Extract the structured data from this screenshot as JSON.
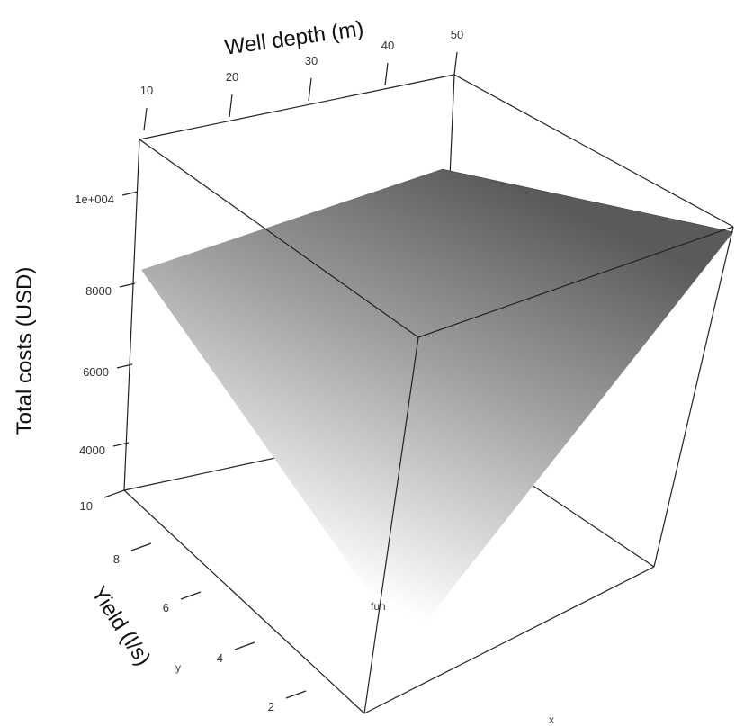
{
  "chart_data": {
    "type": "surface3d",
    "axes": {
      "x_title": "Well depth (m)",
      "y_title": "Yield (l/s)",
      "z_title": "Total costs (USD)",
      "x_ticks": [
        "10",
        "20",
        "30",
        "40",
        "50"
      ],
      "y_ticks": [
        "2",
        "4",
        "6",
        "8",
        "10"
      ],
      "z_ticks": [
        "4000",
        "6000",
        "8000",
        "1e+004"
      ],
      "x_range": [
        10,
        50
      ],
      "y_range": [
        1,
        10
      ],
      "z_range": [
        2500,
        11500
      ]
    },
    "surface_corners": [
      {
        "well_depth": 10,
        "yield": 10,
        "total_costs": 8300
      },
      {
        "well_depth": 50,
        "yield": 10,
        "total_costs": 10900
      },
      {
        "well_depth": 50,
        "yield": 1,
        "total_costs": 10900
      },
      {
        "well_depth": 10,
        "yield": 1,
        "total_costs": 2800
      }
    ],
    "surface_color_range": [
      "#ffffff",
      "#5a5a5a"
    ],
    "extra_labels": {
      "fun": "fun",
      "x": "x",
      "y": "y"
    }
  }
}
